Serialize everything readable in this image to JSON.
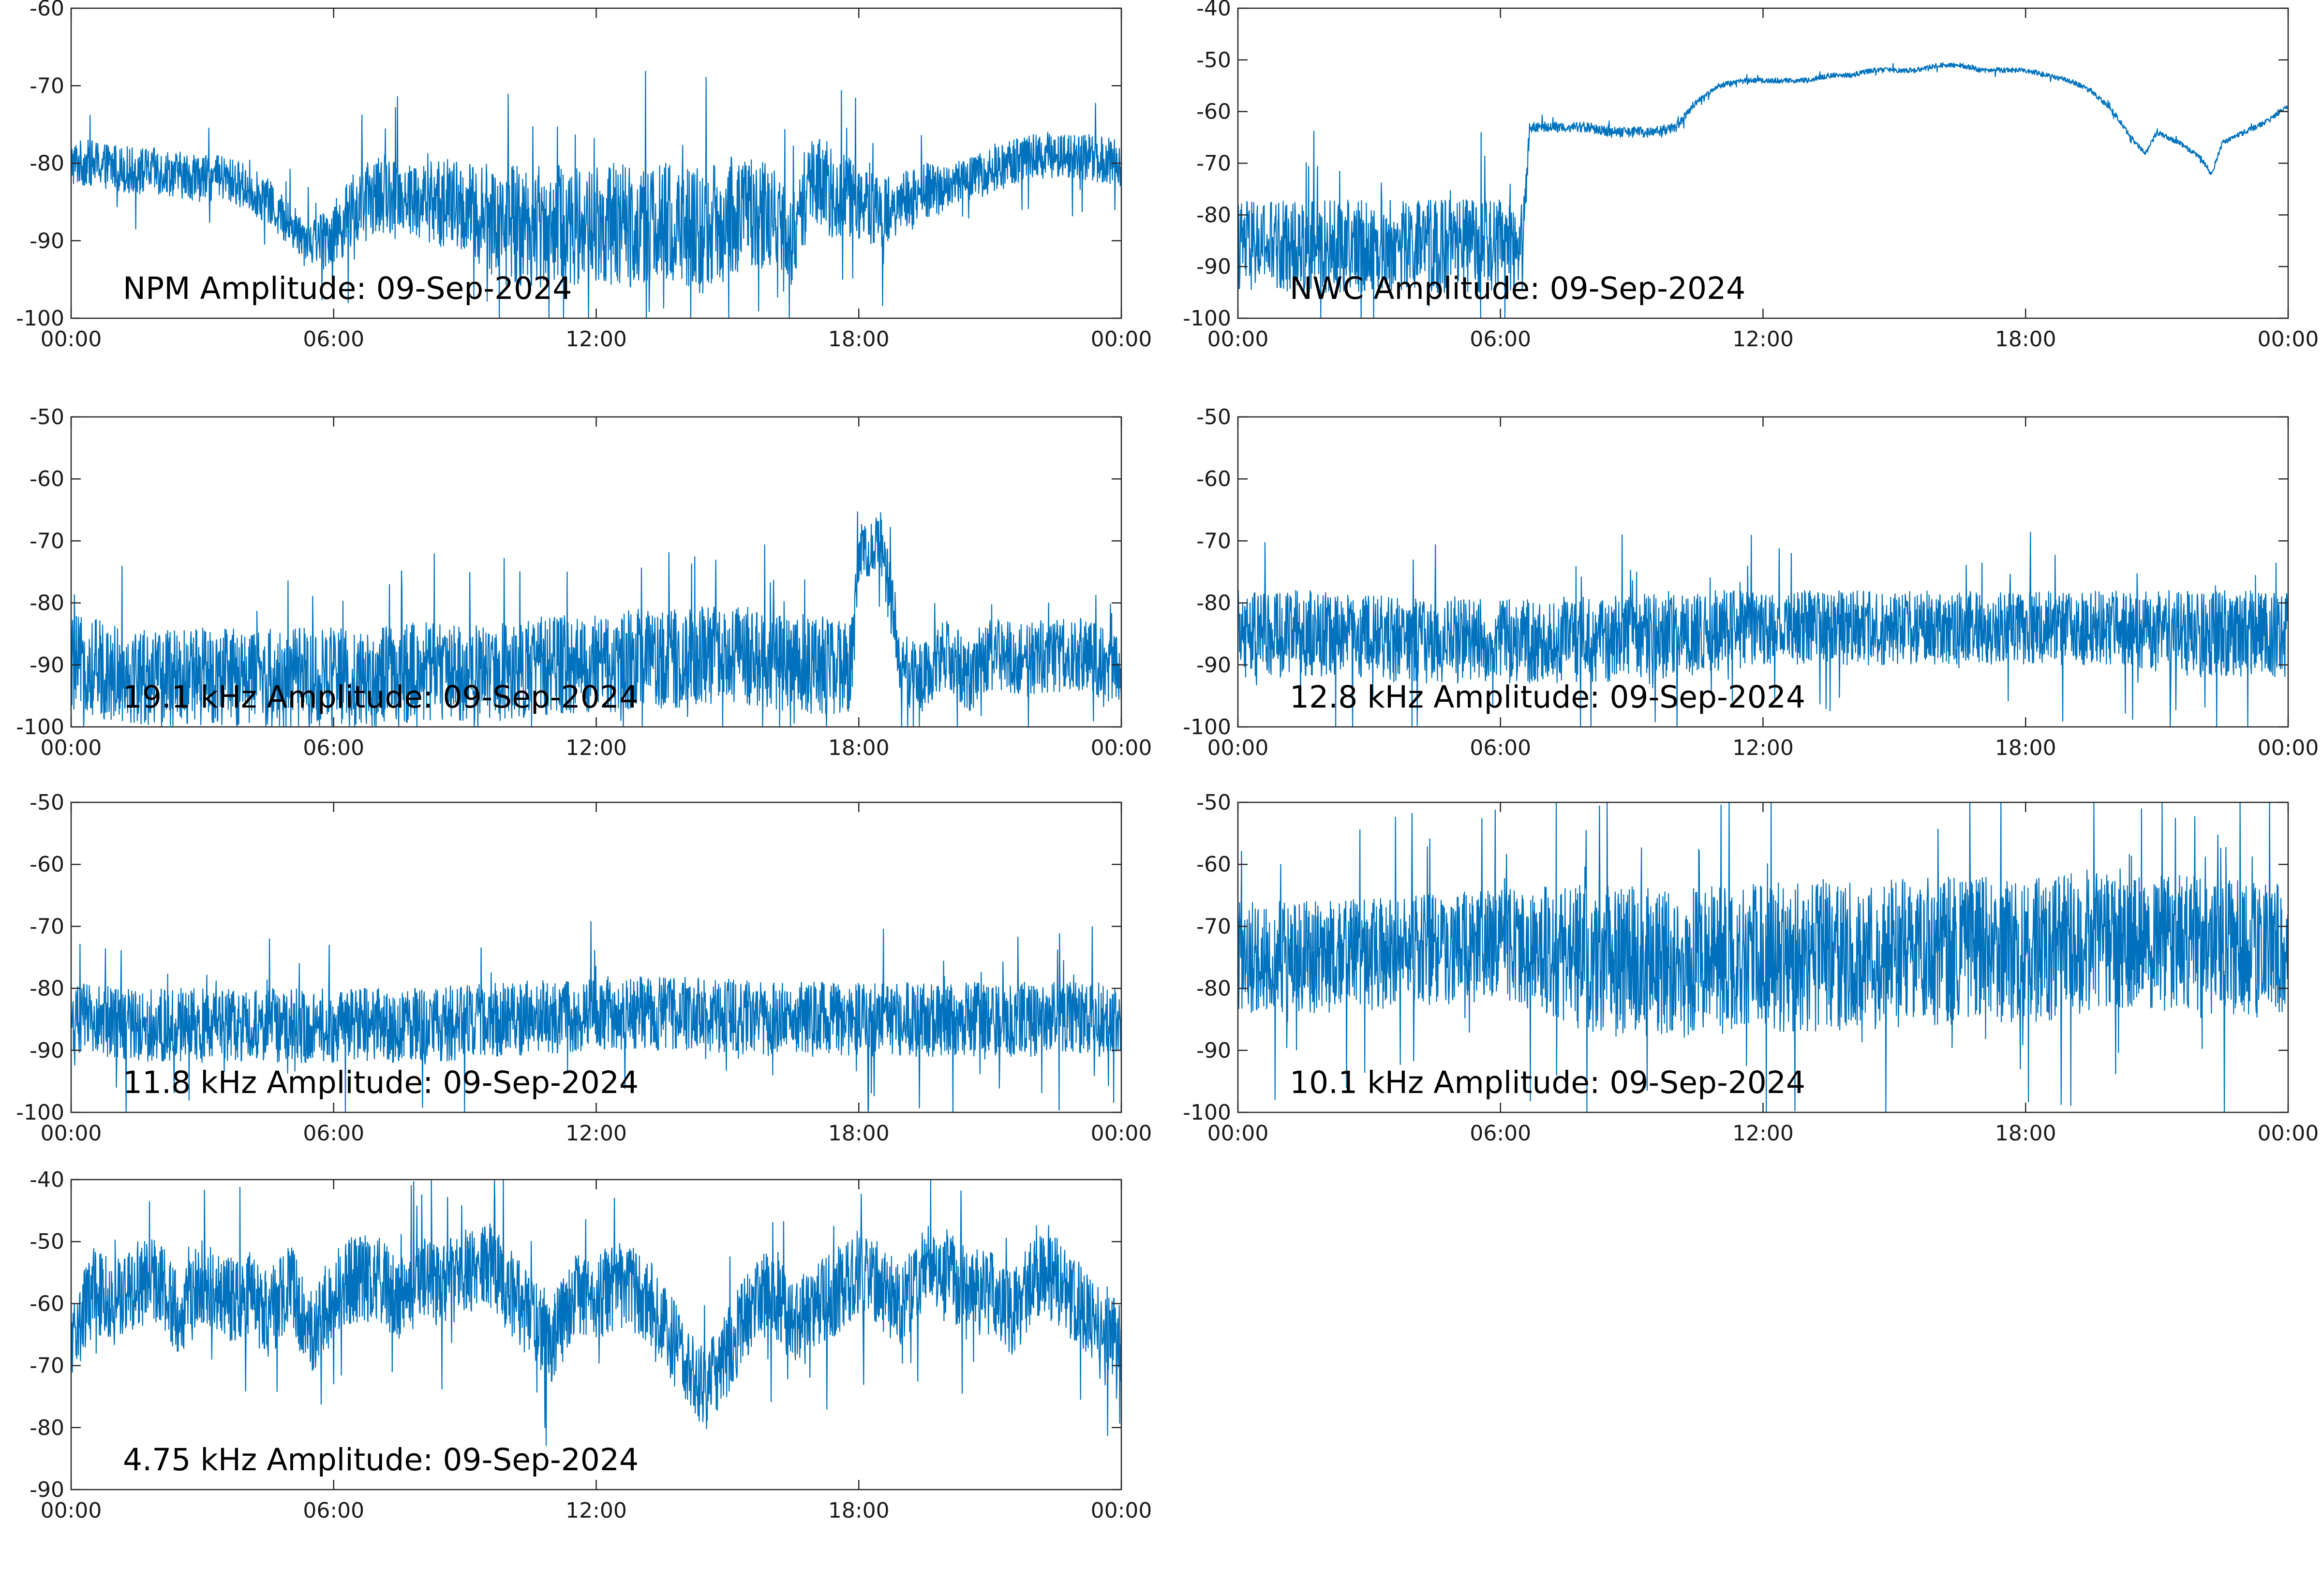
{
  "figure": {
    "background": "#ffffff",
    "line_color": "#0072bd"
  },
  "chart_data": [
    {
      "type": "line",
      "title": "NPM Amplitude: 09-Sep-2024",
      "xlabel": "",
      "ylabel": "",
      "x_ticks": [
        "00:00",
        "06:00",
        "12:00",
        "18:00",
        "00:00"
      ],
      "ylim": [
        -100,
        -60
      ],
      "y_ticks": [
        -100,
        -90,
        -80,
        -70,
        -60
      ],
      "grid": false,
      "series": [
        {
          "x": [
            "00:00",
            "00:30",
            "01:00",
            "01:30",
            "02:00",
            "02:30",
            "03:00",
            "03:30",
            "04:00",
            "04:30",
            "05:00",
            "05:30",
            "06:00",
            "06:30",
            "07:00",
            "07:30",
            "08:00",
            "08:30",
            "09:00",
            "09:30",
            "10:00",
            "10:30",
            "11:00",
            "11:30",
            "12:00",
            "12:30",
            "13:00",
            "13:30",
            "14:00",
            "14:30",
            "15:00",
            "15:30",
            "16:00",
            "16:30",
            "17:00",
            "17:30",
            "18:00",
            "18:30",
            "19:00",
            "19:30",
            "20:00",
            "20:30",
            "21:00",
            "21:30",
            "22:00",
            "22:30",
            "23:00",
            "23:30",
            "24:00"
          ],
          "y": [
            -80,
            -80,
            -80.5,
            -81,
            -81,
            -81.5,
            -82,
            -82,
            -83,
            -85,
            -88,
            -90,
            -89,
            -86,
            -84,
            -84,
            -85,
            -85,
            -86,
            -87,
            -88,
            -88,
            -88,
            -88,
            -88,
            -88,
            -88,
            -88,
            -88,
            -89,
            -87,
            -86,
            -87,
            -90,
            -82,
            -84,
            -85,
            -86,
            -85,
            -84,
            -83,
            -82,
            -81,
            -80,
            -79,
            -79,
            -79,
            -79.5,
            -80
          ],
          "noise": [
            3,
            3,
            3,
            3,
            3,
            3,
            3,
            3,
            3,
            3,
            3,
            3,
            4,
            5,
            5,
            5,
            5,
            6,
            6,
            7,
            8,
            8,
            8,
            8,
            8,
            8,
            8,
            8,
            8,
            8,
            8,
            7,
            7,
            6,
            6,
            6,
            5,
            5,
            4,
            4,
            3,
            3,
            3,
            3,
            3,
            3,
            3,
            3,
            3
          ]
        }
      ]
    },
    {
      "type": "line",
      "title": "NWC Amplitude: 09-Sep-2024",
      "xlabel": "",
      "ylabel": "",
      "x_ticks": [
        "00:00",
        "06:00",
        "12:00",
        "18:00",
        "00:00"
      ],
      "ylim": [
        -100,
        -40
      ],
      "y_ticks": [
        -100,
        -90,
        -80,
        -70,
        -60,
        -50,
        -40
      ],
      "grid": false,
      "series": [
        {
          "x": [
            "00:00",
            "00:30",
            "01:00",
            "01:30",
            "02:00",
            "02:30",
            "03:00",
            "03:30",
            "04:00",
            "04:30",
            "05:00",
            "05:30",
            "06:00",
            "06:30",
            "06:40",
            "07:00",
            "07:30",
            "08:00",
            "08:30",
            "09:00",
            "09:30",
            "10:00",
            "10:30",
            "11:00",
            "11:30",
            "12:00",
            "12:30",
            "13:00",
            "13:30",
            "14:00",
            "14:30",
            "15:00",
            "15:30",
            "16:00",
            "16:30",
            "17:00",
            "17:30",
            "18:00",
            "18:30",
            "19:00",
            "19:30",
            "20:00",
            "20:30",
            "20:45",
            "21:00",
            "21:30",
            "22:00",
            "22:15",
            "22:30",
            "23:00",
            "23:30",
            "24:00"
          ],
          "y": [
            -86,
            -86,
            -86,
            -86,
            -86,
            -86,
            -86,
            -86,
            -86,
            -86,
            -86,
            -86,
            -86,
            -86,
            -63,
            -63,
            -63,
            -63,
            -64,
            -64,
            -64,
            -63,
            -58,
            -55,
            -54,
            -54,
            -54,
            -54,
            -53,
            -53,
            -52,
            -52,
            -52,
            -51,
            -51,
            -52,
            -52,
            -52,
            -53,
            -54,
            -56,
            -60,
            -66,
            -68,
            -64,
            -66,
            -69,
            -72,
            -66,
            -64,
            -62,
            -59
          ],
          "noise": [
            9,
            9,
            9,
            9,
            9,
            9,
            9,
            9,
            9,
            9,
            9,
            9,
            9,
            9,
            1,
            1,
            1,
            1,
            1,
            1,
            1,
            1,
            0.5,
            0.5,
            0.5,
            0.5,
            0.5,
            0.5,
            0.5,
            0.5,
            0.5,
            0.5,
            0.5,
            0.5,
            0.5,
            0.5,
            0.5,
            0.5,
            0.5,
            0.5,
            0.5,
            0.5,
            0.5,
            0.5,
            0.5,
            0.5,
            0.5,
            0.5,
            0.5,
            0.5,
            0.5,
            0.5
          ]
        }
      ]
    },
    {
      "type": "line",
      "title": "19.1 kHz Amplitude: 09-Sep-2024",
      "xlabel": "",
      "ylabel": "",
      "x_ticks": [
        "00:00",
        "06:00",
        "12:00",
        "18:00",
        "00:00"
      ],
      "ylim": [
        -100,
        -50
      ],
      "y_ticks": [
        -100,
        -90,
        -80,
        -70,
        -60,
        -50
      ],
      "grid": false,
      "series": [
        {
          "x": [
            "00:00",
            "01:00",
            "02:00",
            "03:00",
            "04:00",
            "05:00",
            "06:00",
            "07:00",
            "08:00",
            "09:00",
            "10:00",
            "11:00",
            "12:00",
            "13:00",
            "14:00",
            "15:00",
            "16:00",
            "17:00",
            "17:50",
            "18:00",
            "18:30",
            "19:00",
            "19:30",
            "20:00",
            "20:30",
            "21:00",
            "22:00",
            "23:00",
            "24:00"
          ],
          "y": [
            -90,
            -91,
            -92,
            -92,
            -92,
            -92,
            -92,
            -92,
            -91,
            -91,
            -91,
            -90,
            -90,
            -89,
            -89,
            -88,
            -89,
            -90,
            -90,
            -72,
            -70,
            -91,
            -92,
            -88,
            -92,
            -88,
            -89,
            -88,
            -91
          ],
          "noise": [
            8,
            8,
            8,
            8,
            8,
            8,
            8,
            8,
            8,
            8,
            8,
            8,
            8,
            8,
            8,
            8,
            8,
            8,
            8,
            5,
            5,
            6,
            6,
            6,
            6,
            6,
            6,
            6,
            6
          ]
        }
      ]
    },
    {
      "type": "line",
      "title": "12.8 kHz Amplitude: 09-Sep-2024",
      "xlabel": "",
      "ylabel": "",
      "x_ticks": [
        "00:00",
        "06:00",
        "12:00",
        "18:00",
        "00:00"
      ],
      "ylim": [
        -100,
        -50
      ],
      "y_ticks": [
        -100,
        -90,
        -80,
        -70,
        -60,
        -50
      ],
      "grid": false,
      "series": [
        {
          "x": [
            "00:00",
            "02:00",
            "04:00",
            "06:00",
            "08:00",
            "10:00",
            "12:00",
            "14:00",
            "16:00",
            "18:00",
            "20:00",
            "22:00",
            "24:00"
          ],
          "y": [
            -85,
            -85,
            -86,
            -86,
            -86,
            -85,
            -84,
            -84,
            -84,
            -84,
            -84,
            -85,
            -85
          ],
          "noise": [
            7,
            7,
            7,
            7,
            7,
            7,
            6,
            6,
            6,
            6,
            6,
            7,
            7
          ]
        }
      ]
    },
    {
      "type": "line",
      "title": "11.8 kHz Amplitude: 09-Sep-2024",
      "xlabel": "",
      "ylabel": "",
      "x_ticks": [
        "00:00",
        "06:00",
        "12:00",
        "18:00",
        "00:00"
      ],
      "ylim": [
        -100,
        -50
      ],
      "y_ticks": [
        -100,
        -90,
        -80,
        -70,
        -60,
        -50
      ],
      "grid": false,
      "series": [
        {
          "x": [
            "00:00",
            "02:00",
            "04:00",
            "06:00",
            "08:00",
            "10:00",
            "12:00",
            "14:00",
            "16:00",
            "18:00",
            "20:00",
            "22:00",
            "24:00"
          ],
          "y": [
            -85,
            -86,
            -86,
            -86,
            -86,
            -85,
            -84,
            -84,
            -85,
            -85,
            -85,
            -85,
            -85
          ],
          "noise": [
            6,
            6,
            6,
            6,
            6,
            6,
            6,
            6,
            6,
            6,
            6,
            6,
            6
          ]
        }
      ]
    },
    {
      "type": "line",
      "title": "10.1 kHz Amplitude: 09-Sep-2024",
      "xlabel": "",
      "ylabel": "",
      "x_ticks": [
        "00:00",
        "06:00",
        "12:00",
        "18:00",
        "00:00"
      ],
      "ylim": [
        -100,
        -50
      ],
      "y_ticks": [
        -100,
        -90,
        -80,
        -70,
        -60,
        -50
      ],
      "grid": false,
      "series": [
        {
          "x": [
            "00:00",
            "02:00",
            "04:00",
            "06:00",
            "08:00",
            "10:00",
            "12:00",
            "14:00",
            "16:00",
            "18:00",
            "20:00",
            "22:00",
            "24:00"
          ],
          "y": [
            -75,
            -75,
            -74,
            -73,
            -75,
            -76,
            -75,
            -75,
            -74,
            -74,
            -72,
            -73,
            -74
          ],
          "noise": [
            9,
            9,
            9,
            9,
            12,
            12,
            12,
            12,
            12,
            12,
            11,
            11,
            11
          ]
        }
      ]
    },
    {
      "type": "line",
      "title": "4.75 kHz Amplitude: 09-Sep-2024",
      "xlabel": "",
      "ylabel": "",
      "x_ticks": [
        "00:00",
        "06:00",
        "12:00",
        "18:00",
        "00:00"
      ],
      "ylim": [
        -90,
        -40
      ],
      "y_ticks": [
        -90,
        -80,
        -70,
        -60,
        -50,
        -40
      ],
      "grid": false,
      "series": [
        {
          "x": [
            "00:00",
            "00:30",
            "01:00",
            "01:30",
            "02:00",
            "02:30",
            "03:00",
            "03:30",
            "04:00",
            "04:30",
            "05:00",
            "05:30",
            "06:00",
            "06:30",
            "07:00",
            "07:30",
            "08:00",
            "08:30",
            "09:00",
            "09:30",
            "10:00",
            "10:30",
            "11:00",
            "11:30",
            "12:00",
            "12:30",
            "13:00",
            "13:30",
            "14:00",
            "14:30",
            "15:00",
            "15:30",
            "16:00",
            "16:30",
            "17:00",
            "17:30",
            "18:00",
            "18:30",
            "19:00",
            "19:30",
            "20:00",
            "20:30",
            "21:00",
            "21:30",
            "22:00",
            "22:30",
            "23:00",
            "23:30",
            "24:00"
          ],
          "y": [
            -66,
            -58,
            -60,
            -57,
            -56,
            -63,
            -56,
            -60,
            -58,
            -62,
            -57,
            -65,
            -58,
            -56,
            -56,
            -60,
            -56,
            -57,
            -55,
            -53,
            -58,
            -62,
            -66,
            -59,
            -59,
            -57,
            -58,
            -62,
            -70,
            -74,
            -68,
            -61,
            -58,
            -63,
            -60,
            -58,
            -55,
            -58,
            -60,
            -54,
            -55,
            -58,
            -58,
            -62,
            -56,
            -56,
            -60,
            -64,
            -66
          ],
          "noise": [
            7,
            7,
            7,
            7,
            7,
            7,
            7,
            7,
            7,
            7,
            7,
            7,
            7,
            7,
            7,
            7,
            7,
            7,
            7,
            7,
            7,
            7,
            7,
            7,
            7,
            7,
            7,
            7,
            7,
            7,
            7,
            7,
            7,
            7,
            7,
            7,
            7,
            7,
            7,
            7,
            7,
            7,
            7,
            7,
            7,
            7,
            7,
            7,
            7
          ]
        }
      ]
    }
  ]
}
